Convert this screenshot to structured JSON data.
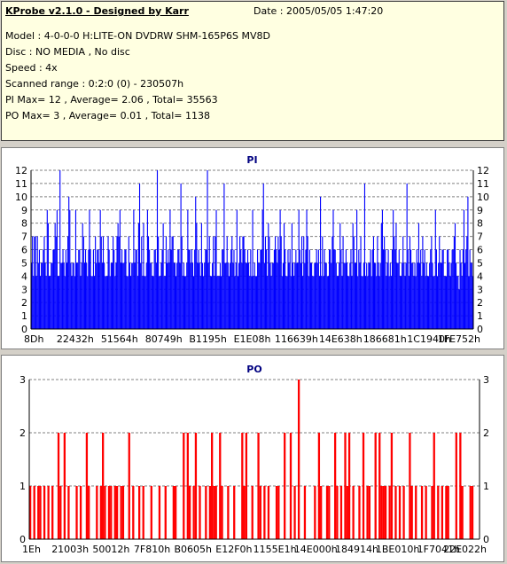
{
  "header": {
    "title": "KProbe v2.1.0 - Designed by Karr",
    "date": "Date : 2005/05/05 1:47:20",
    "lines": [
      "Model : 4-0-0-0 H:LITE-ON DVDRW SHM-165P6S MV8D",
      "Disc : NO MEDIA , No disc",
      "Speed : 4x",
      "Scanned range : 0:2:0 (0) - 230507h",
      "PI Max= 12 , Average= 2.06 , Total= 35563",
      "PO Max= 3 , Average= 0.01 , Total= 1138"
    ]
  },
  "colors": {
    "pi_series": "#0000ff",
    "po_series": "#ff0000",
    "title": "#000080",
    "grid": "#808080",
    "background": "#ffffff"
  },
  "chart_data": [
    {
      "type": "bar",
      "title": "PI",
      "ylim": [
        0,
        12
      ],
      "yticks": [
        0,
        1,
        2,
        3,
        4,
        5,
        6,
        7,
        8,
        9,
        10,
        11,
        12
      ],
      "y_axis_both_sides": true,
      "grid": "horizontal dashed",
      "xtick_labels": [
        "8Dh",
        "22432h",
        "51564h",
        "80749h",
        "B1195h",
        "E1E08h",
        "116639h",
        "14E638h",
        "186681h",
        "1C1940h",
        "1FE752h"
      ],
      "series": [
        {
          "values": [
            5,
            7,
            4,
            7,
            7,
            4,
            7,
            5,
            6,
            4,
            5,
            5,
            6,
            7,
            5,
            4,
            9,
            8,
            4,
            4,
            5,
            5,
            6,
            6,
            8,
            7,
            9,
            4,
            4,
            12,
            5,
            5,
            6,
            5,
            4,
            6,
            5,
            7,
            10,
            9,
            5,
            4,
            5,
            5,
            4,
            9,
            5,
            5,
            6,
            6,
            4,
            5,
            8,
            7,
            5,
            6,
            5,
            4,
            6,
            9,
            6,
            4,
            4,
            6,
            4,
            7,
            5,
            6,
            6,
            5,
            9,
            7,
            5,
            7,
            5,
            4,
            4,
            4,
            7,
            6,
            4,
            5,
            5,
            7,
            6,
            4,
            5,
            7,
            8,
            7,
            9,
            5,
            6,
            5,
            5,
            6,
            6,
            4,
            4,
            7,
            5,
            4,
            5,
            5,
            9,
            5,
            6,
            6,
            4,
            8,
            11,
            5,
            7,
            4,
            8,
            4,
            4,
            5,
            9,
            7,
            6,
            5,
            5,
            4,
            4,
            6,
            6,
            5,
            12,
            7,
            4,
            4,
            5,
            6,
            8,
            4,
            4,
            7,
            5,
            6,
            5,
            9,
            6,
            7,
            7,
            5,
            5,
            4,
            5,
            6,
            6,
            5,
            11,
            7,
            4,
            5,
            4,
            4,
            5,
            9,
            6,
            6,
            5,
            6,
            5,
            4,
            6,
            10,
            8,
            5,
            6,
            5,
            4,
            8,
            5,
            4,
            5,
            6,
            6,
            12,
            5,
            7,
            4,
            4,
            5,
            7,
            4,
            7,
            9,
            4,
            4,
            4,
            5,
            4,
            6,
            6,
            11,
            5,
            5,
            7,
            5,
            4,
            5,
            6,
            7,
            5,
            6,
            4,
            5,
            9,
            4,
            5,
            7,
            6,
            5,
            7,
            7,
            6,
            5,
            5,
            6,
            5,
            4,
            6,
            4,
            9,
            4,
            5,
            4,
            4,
            6,
            5,
            5,
            6,
            6,
            9,
            11,
            5,
            7,
            6,
            4,
            8,
            7,
            5,
            4,
            5,
            5,
            6,
            7,
            6,
            5,
            7,
            6,
            9,
            7,
            4,
            5,
            8,
            6,
            4,
            4,
            6,
            5,
            6,
            4,
            8,
            5,
            4,
            5,
            6,
            5,
            5,
            9,
            6,
            5,
            7,
            4,
            7,
            5,
            6,
            9,
            7,
            4,
            6,
            5,
            5,
            4,
            4,
            5,
            5,
            6,
            5,
            6,
            4,
            10,
            4,
            7,
            4,
            6,
            5,
            5,
            4,
            4,
            6,
            6,
            5,
            7,
            9,
            6,
            6,
            5,
            4,
            4,
            5,
            8,
            6,
            4,
            7,
            5,
            5,
            6,
            5,
            4,
            4,
            5,
            6,
            4,
            8,
            7,
            5,
            5,
            9,
            4,
            6,
            5,
            7,
            4,
            4,
            5,
            11,
            4,
            5,
            4,
            5,
            5,
            6,
            4,
            6,
            7,
            5,
            5,
            4,
            7,
            5,
            4,
            5,
            8,
            9,
            6,
            7,
            6,
            4,
            5,
            6,
            4,
            5,
            4,
            6,
            9,
            7,
            6,
            8,
            5,
            5,
            6,
            4,
            4,
            5,
            7,
            5,
            4,
            5,
            11,
            6,
            4,
            7,
            6,
            5,
            5,
            4,
            5,
            4,
            6,
            5,
            8,
            5,
            6,
            4,
            7,
            5,
            6,
            4,
            5,
            4,
            4,
            5,
            6,
            7,
            5,
            4,
            4,
            9,
            6,
            4,
            5,
            7,
            5,
            5,
            6,
            6,
            4,
            4,
            4,
            6,
            6,
            5,
            4,
            5,
            6,
            6,
            7,
            8,
            5,
            4,
            4,
            3,
            6,
            5,
            4,
            6,
            9,
            5,
            6,
            7,
            10,
            4,
            6,
            5,
            5,
            4
          ]
        }
      ]
    },
    {
      "type": "bar",
      "title": "PO",
      "ylim": [
        0,
        3
      ],
      "yticks": [
        0,
        1,
        2,
        3
      ],
      "y_axis_both_sides": true,
      "grid": "horizontal dashed",
      "xtick_labels": [
        "1Eh",
        "21003h",
        "50012h",
        "7F810h",
        "B0605h",
        "E12F0h",
        "1155E1h",
        "14E000h",
        "184914h",
        "1BE010h",
        "1F7041h",
        "22E022h"
      ],
      "series": [
        {
          "values": [
            1,
            0,
            1,
            0,
            1,
            1,
            0,
            1,
            0,
            1,
            0,
            1,
            0,
            0,
            2,
            1,
            0,
            2,
            0,
            1,
            0,
            0,
            0,
            1,
            0,
            1,
            0,
            0,
            2,
            1,
            0,
            0,
            0,
            1,
            0,
            1,
            2,
            1,
            0,
            1,
            1,
            0,
            1,
            1,
            0,
            1,
            1,
            0,
            0,
            2,
            0,
            1,
            0,
            0,
            1,
            0,
            1,
            0,
            0,
            0,
            1,
            0,
            0,
            0,
            1,
            0,
            0,
            1,
            0,
            0,
            0,
            1,
            1,
            0,
            0,
            0,
            2,
            0,
            2,
            1,
            0,
            1,
            2,
            0,
            1,
            0,
            0,
            1,
            0,
            1,
            2,
            1,
            1,
            0,
            2,
            1,
            0,
            0,
            1,
            0,
            0,
            1,
            0,
            0,
            0,
            2,
            1,
            2,
            0,
            0,
            1,
            0,
            0,
            2,
            1,
            0,
            1,
            0,
            1,
            0,
            0,
            0,
            1,
            1,
            0,
            0,
            2,
            0,
            0,
            2,
            0,
            1,
            0,
            3,
            0,
            0,
            1,
            0,
            0,
            0,
            0,
            1,
            0,
            2,
            1,
            0,
            0,
            1,
            1,
            0,
            0,
            2,
            1,
            0,
            1,
            0,
            2,
            1,
            2,
            0,
            1,
            0,
            0,
            1,
            0,
            2,
            0,
            1,
            1,
            0,
            0,
            2,
            0,
            2,
            1,
            1,
            1,
            0,
            1,
            2,
            0,
            1,
            0,
            1,
            0,
            1,
            0,
            0,
            2,
            1,
            0,
            1,
            0,
            0,
            1,
            0,
            1,
            0,
            0,
            1,
            2,
            0,
            1,
            0,
            1,
            0,
            1,
            1,
            0,
            0,
            0,
            2,
            0,
            2,
            1,
            0,
            0,
            0,
            1,
            1,
            0,
            0,
            0
          ]
        }
      ]
    }
  ]
}
